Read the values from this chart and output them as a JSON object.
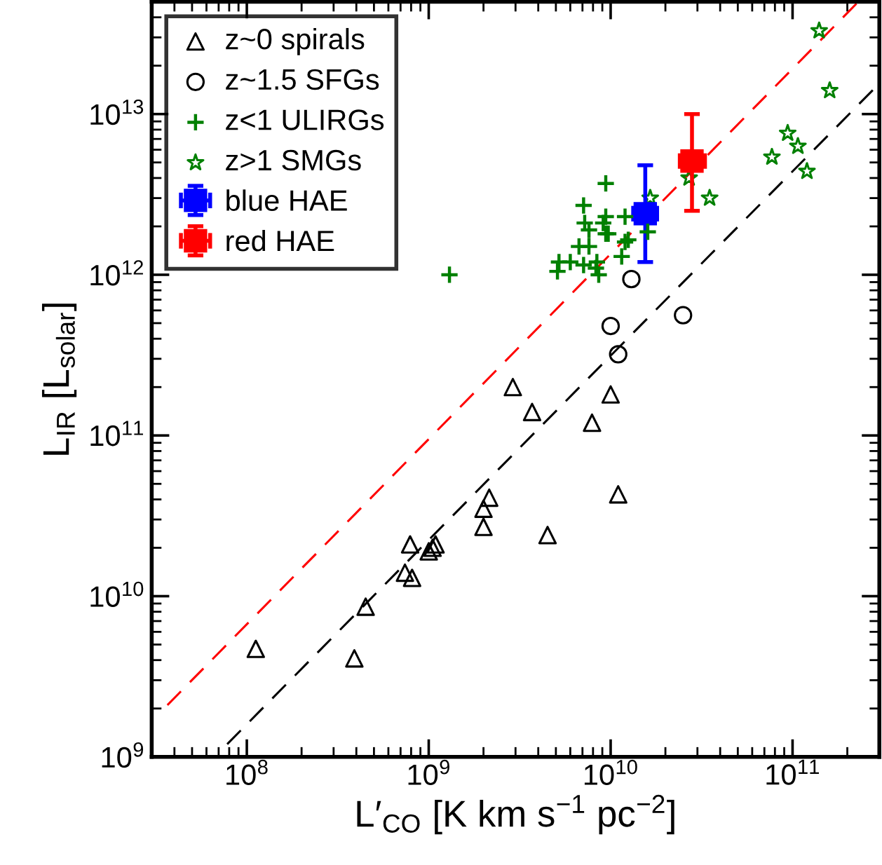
{
  "chart_data": {
    "type": "scatter",
    "xlabel": "L′$_{CO}$ [K km s$^{−1}$ pc$^{−2}$]",
    "ylabel": "L$_{IR}$ [L$_{solar}$]",
    "log": "xy",
    "legend": "top left",
    "grid": false,
    "xlim": [
      30000000.0,
      300000000000.0
    ],
    "ylim": [
      1000000000.0,
      50000000000000.0
    ],
    "xticks": [
      {
        "value": 100000000.0,
        "label": "10$^{8}$"
      },
      {
        "value": 1000000000.0,
        "label": "10$^{9}$"
      },
      {
        "value": 10000000000.0,
        "label": "10$^{10}$"
      },
      {
        "value": 100000000000.0,
        "label": "10$^{11}$"
      }
    ],
    "yticks": [
      {
        "value": 1000000000.0,
        "label": "10$^{9}$"
      },
      {
        "value": 10000000000.0,
        "label": "10$^{10}$"
      },
      {
        "value": 100000000000.0,
        "label": "10$^{11}$"
      },
      {
        "value": 1000000000000.0,
        "label": "10$^{12}$"
      },
      {
        "value": 10000000000000.0,
        "label": "10$^{13}$"
      }
    ],
    "series": [
      {
        "name": "z~0 spirals",
        "color": "#000000",
        "marker": "triangle",
        "x": [
          112000000.0,
          390000000.0,
          450000000.0,
          790000000.0,
          740000000.0,
          810000000.0,
          1000000000.0,
          1090000000.0,
          1050000000.0,
          2000000000.0,
          2000000000.0,
          2150000000.0,
          2900000000.0,
          3700000000.0,
          4500000000.0,
          7900000000.0,
          10000000000.0,
          11000000000.0
        ],
        "values": [
          4700000000.0,
          4100000000.0,
          8600000000.0,
          21000000000.0,
          14000000000.0,
          13000000000.0,
          19000000000.0,
          21000000000.0,
          20000000000.0,
          27000000000.0,
          35000000000.0,
          41000000000.0,
          200000000000.0,
          140000000000.0,
          24000000000.0,
          120000000000.0,
          180000000000.0,
          43000000000.0
        ]
      },
      {
        "name": "z~1.5 SFGs",
        "color": "#000000",
        "marker": "circle",
        "x": [
          10000000000.0,
          11000000000.0,
          25000000000.0,
          13000000000.0
        ],
        "values": [
          480000000000.0,
          320000000000.0,
          560000000000.0,
          940000000000.0
        ]
      },
      {
        "name": "z<1 ULIRGs",
        "color": "#008000",
        "marker": "cross",
        "x": [
          9400000000.0,
          7100000000.0,
          7200000000.0,
          7600000000.0,
          9100000000.0,
          9400000000.0,
          9400000000.0,
          9700000000.0,
          12000000000.0,
          6700000000.0,
          7600000000.0,
          12500000000.0,
          12000000000.0,
          11500000000.0,
          16000000000.0,
          5200000000.0,
          6000000000.0,
          5100000000.0,
          7100000000.0,
          8400000000.0,
          8300000000.0,
          8600000000.0,
          1300000000.0
        ],
        "values": [
          3700000000000.0,
          2700000000000.0,
          2100000000000.0,
          1900000000000.0,
          2100000000000.0,
          2300000000000.0,
          1800000000000.0,
          1800000000000.0,
          2300000000000.0,
          1500000000000.0,
          1500000000000.0,
          1650000000000.0,
          1600000000000.0,
          1300000000000.0,
          1850000000000.0,
          1200000000000.0,
          1200000000000.0,
          1050000000000.0,
          1150000000000.0,
          1200000000000.0,
          1100000000000.0,
          1000000000000.0,
          1000000000000.0
        ]
      },
      {
        "name": "z>1 SMGs",
        "color": "#008000",
        "marker": "star",
        "x": [
          140000000000.0,
          160000000000.0,
          94000000000.0,
          107000000000.0,
          77000000000.0,
          120000000000.0,
          35000000000.0,
          27000000000.0,
          16500000000.0
        ],
        "values": [
          33000000000000.0,
          14000000000000.0,
          7600000000000.0,
          6300000000000.0,
          5400000000000.0,
          4400000000000.0,
          3000000000000.0,
          4000000000000.0,
          3000000000000.0
        ]
      },
      {
        "name": "blue HAE",
        "color": "#0000ff",
        "marker": "square",
        "x": [
          15500000000.0
        ],
        "values": [
          2400000000000.0
        ],
        "errors": [
          [
            1200000000000.0,
            4800000000000.0
          ]
        ],
        "xerrors": [
          [
            13300000000.0,
            18000000000.0
          ]
        ]
      },
      {
        "name": "red HAE",
        "color": "#ff0000",
        "marker": "square",
        "x": [
          28000000000.0
        ],
        "values": [
          5100000000000.0
        ],
        "errors": [
          [
            2500000000000.0,
            10000000000000.0
          ]
        ],
        "xerrors": [
          [
            24000000000.0,
            33000000000.0
          ]
        ]
      },
      {
        "type": "line",
        "color": "#ff0000",
        "line_style": "dashed",
        "x": [
          36600000.0,
          230000000000.0
        ],
        "values": [
          2100000000.0,
          50000000000000.0
        ]
      },
      {
        "type": "line",
        "color": "#000000",
        "line_style": "dashed",
        "x": [
          78000000.0,
          300000000000.0
        ],
        "values": [
          1200000000.0,
          15500000000000.0
        ]
      }
    ]
  }
}
